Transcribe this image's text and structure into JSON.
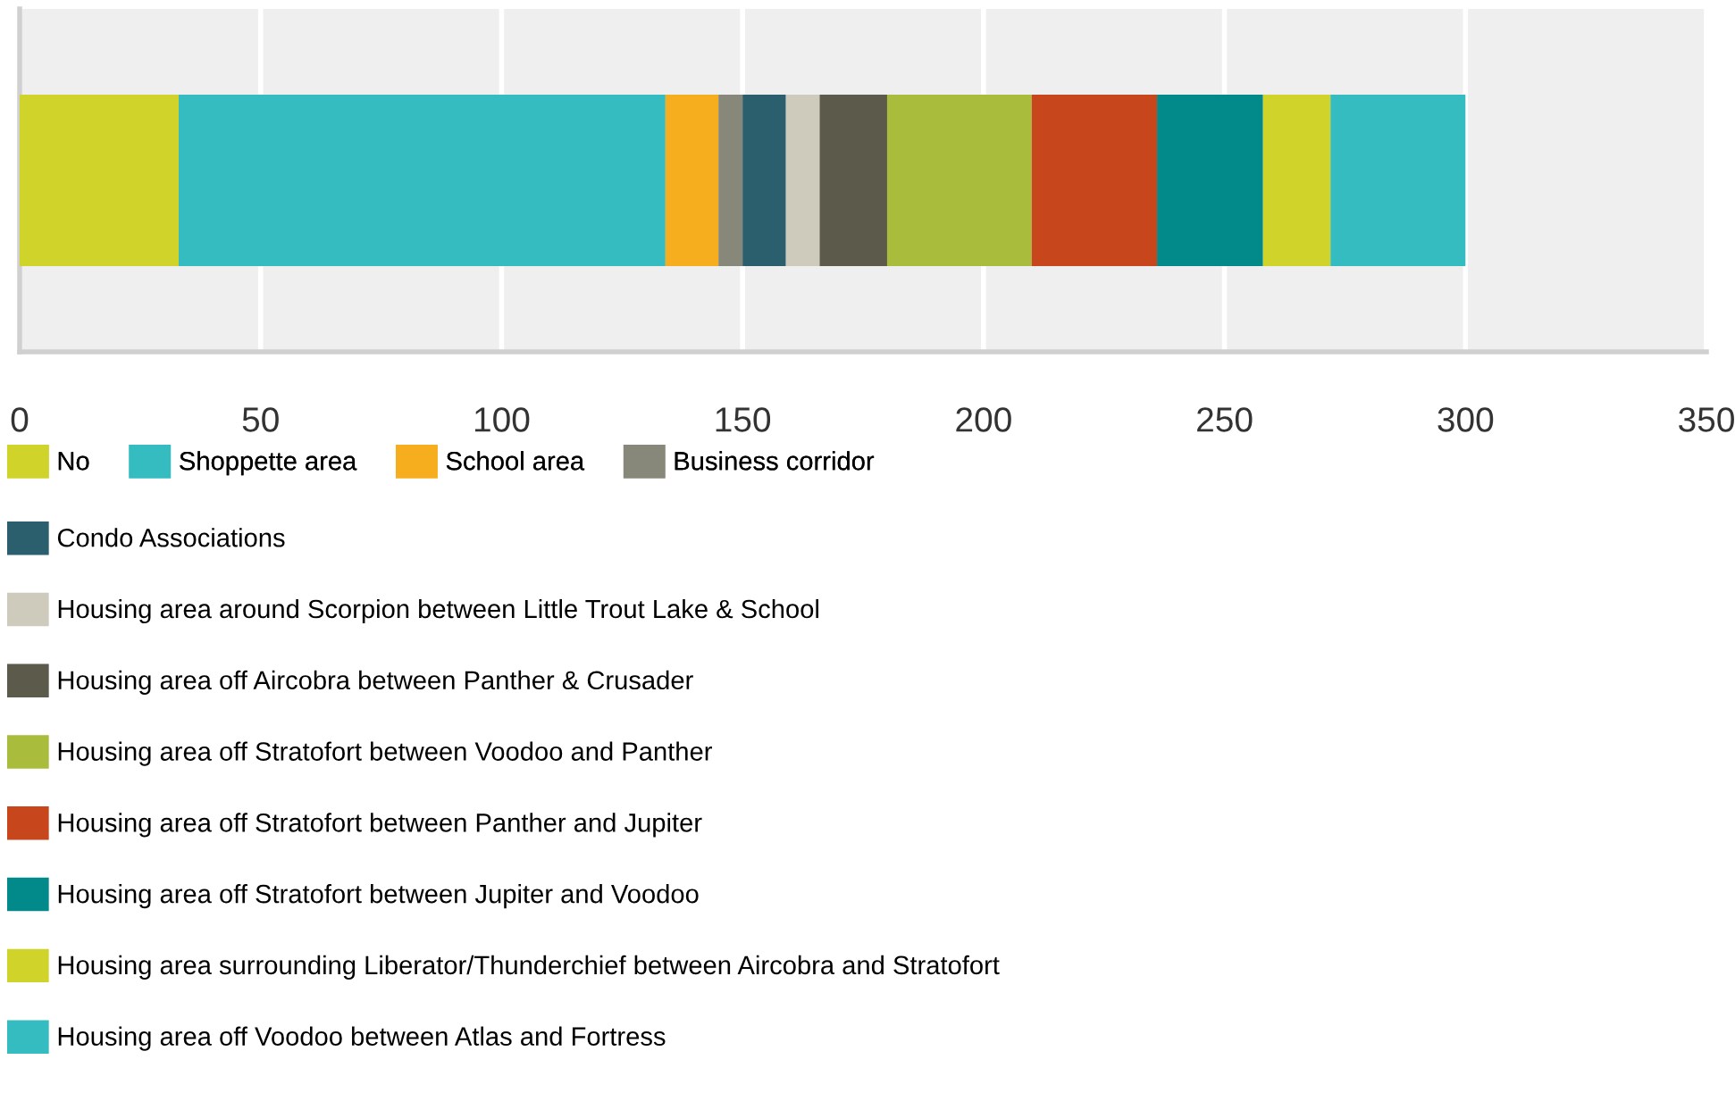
{
  "chart_data": {
    "type": "bar",
    "orientation": "horizontal",
    "stacked": true,
    "categories": [
      null
    ],
    "series": [
      {
        "name": "No",
        "color": "#d0d32a",
        "values": [
          33
        ]
      },
      {
        "name": "Shoppette area",
        "color": "#34bcc0",
        "values": [
          101
        ]
      },
      {
        "name": "School area",
        "color": "#f6ae1e",
        "values": [
          11
        ]
      },
      {
        "name": "Business corridor",
        "color": "#88887a",
        "values": [
          5
        ]
      },
      {
        "name": "Condo Associations",
        "color": "#2c5f6e",
        "values": [
          9
        ]
      },
      {
        "name": "Housing area around Scorpion between Little Trout Lake & School",
        "color": "#cecbbd",
        "values": [
          7
        ]
      },
      {
        "name": "Housing area off Aircobra between Panther & Crusader",
        "color": "#5b5a4b",
        "values": [
          14
        ]
      },
      {
        "name": "Housing area off Stratofort between Voodoo and Panther",
        "color": "#aabc3b",
        "values": [
          30
        ]
      },
      {
        "name": "Housing area off Stratofort between Panther and Jupiter",
        "color": "#c8461c",
        "values": [
          26
        ]
      },
      {
        "name": "Housing area off Stratofort between Jupiter and Voodoo",
        "color": "#018a89",
        "values": [
          22
        ]
      },
      {
        "name": "Housing area surrounding Liberator/Thunderchief between Aircobra and Stratofort",
        "color": "#d0d32a",
        "values": [
          14
        ]
      },
      {
        "name": "Housing area off Voodoo between Atlas and Fortress",
        "color": "#34bcc0",
        "values": [
          28
        ]
      }
    ],
    "xlim": [
      0,
      350
    ],
    "xticks": [
      0,
      50,
      100,
      150,
      200,
      250,
      300,
      350
    ],
    "grid": "x",
    "legend": "bottom"
  }
}
